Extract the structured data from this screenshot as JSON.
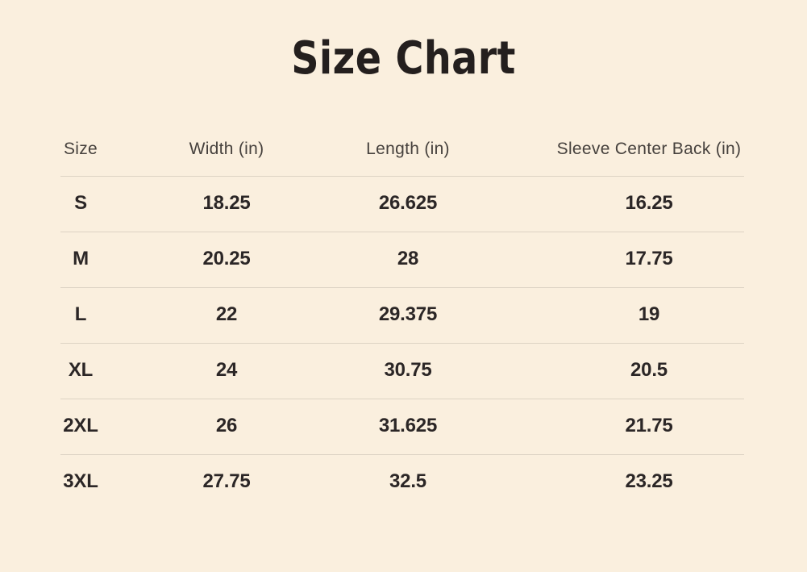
{
  "title": "Size Chart",
  "table": {
    "headers": [
      "Size",
      "Width (in)",
      "Length (in)",
      "Sleeve Center Back (in)"
    ],
    "rows": [
      [
        "S",
        "18.25",
        "26.625",
        "16.25"
      ],
      [
        "M",
        "20.25",
        "28",
        "17.75"
      ],
      [
        "L",
        "22",
        "29.375",
        "19"
      ],
      [
        "XL",
        "24",
        "30.75",
        "20.5"
      ],
      [
        "2XL",
        "26",
        "31.625",
        "21.75"
      ],
      [
        "3XL",
        "27.75",
        "32.5",
        "23.25"
      ]
    ]
  },
  "colors": {
    "background": "#faefde",
    "title_text": "#241f1e",
    "header_text": "#46413d",
    "body_text": "#2b2626",
    "divider": "#ddd3c4"
  },
  "chart_data": {
    "type": "table",
    "title": "Size Chart",
    "columns": [
      "Size",
      "Width (in)",
      "Length (in)",
      "Sleeve Center Back (in)"
    ],
    "rows": [
      [
        "S",
        "18.25",
        "26.625",
        "16.25"
      ],
      [
        "M",
        "20.25",
        "28",
        "17.75"
      ],
      [
        "L",
        "22",
        "29.375",
        "19"
      ],
      [
        "XL",
        "24",
        "30.75",
        "20.5"
      ],
      [
        "2XL",
        "26",
        "31.625",
        "21.75"
      ],
      [
        "3XL",
        "27.75",
        "32.5",
        "23.25"
      ]
    ]
  }
}
